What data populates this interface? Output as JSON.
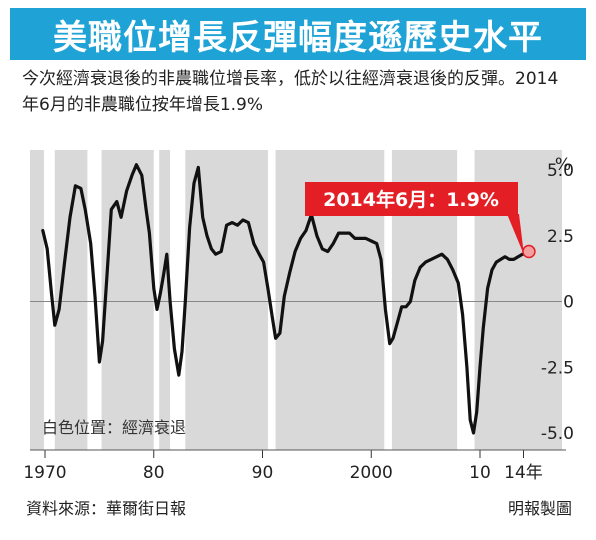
{
  "title": "美職位增長反彈幅度遜歷史水平",
  "subtitle": "今次經濟衰退後的非農職位增長率，低於以往經濟衰退後的反彈。2014年6月的非農職位按年增長1.9%",
  "note": "白色位置：經濟衰退",
  "source": "資料來源：華爾街日報",
  "credit": "明報製圖",
  "callout": "2014年6月：1.9%",
  "colors": {
    "title_bg": "#1fa3d6",
    "recession_band": "#d9d9d9",
    "line": "#111111",
    "callout_bg": "#e31e24",
    "zero_line": "#888888"
  },
  "chart_data": {
    "type": "line",
    "y_unit": "%",
    "ylim": [
      -5.5,
      5.5
    ],
    "y_ticks": [
      5.0,
      2.5,
      0,
      -2.5,
      -5.0
    ],
    "y_tick_labels": [
      "5.0",
      "2.5",
      "0",
      "-2.5",
      "-5.0"
    ],
    "x_ticks": [
      1970,
      1980,
      1990,
      2000,
      2010,
      2014
    ],
    "x_tick_labels": [
      "1970",
      "80",
      "90",
      "2000",
      "10",
      "14年"
    ],
    "xlim": [
      1969.5,
      2015.0
    ],
    "recession_bands_unshaded": [
      [
        1969.9,
        1970.9
      ],
      [
        1973.9,
        1975.2
      ],
      [
        1980.0,
        1980.5
      ],
      [
        1981.5,
        1982.9
      ],
      [
        1990.5,
        1991.2
      ],
      [
        2001.2,
        2001.9
      ],
      [
        2007.9,
        2009.5
      ]
    ],
    "series": [
      {
        "x": [
          1969.8,
          1970.2,
          1970.6,
          1970.9,
          1971.3,
          1971.8,
          1972.3,
          1972.8,
          1973.3,
          1973.7,
          1974.2,
          1974.6,
          1975.0,
          1975.3,
          1975.7,
          1976.1,
          1976.6,
          1977.0,
          1977.5,
          1978.0,
          1978.4,
          1978.9,
          1979.3,
          1979.6,
          1980.0,
          1980.3,
          1980.6,
          1980.9,
          1981.2,
          1981.5,
          1981.9,
          1982.3,
          1982.6,
          1982.9,
          1983.3,
          1983.7,
          1984.1,
          1984.5,
          1984.9,
          1985.3,
          1985.7,
          1986.2,
          1986.7,
          1987.2,
          1987.7,
          1988.2,
          1988.7,
          1989.2,
          1989.7,
          1990.1,
          1990.5,
          1990.9,
          1991.2,
          1991.6,
          1992.0,
          1992.5,
          1993.0,
          1993.5,
          1994.0,
          1994.5,
          1995.0,
          1995.5,
          1996.0,
          1996.5,
          1997.0,
          1997.5,
          1998.0,
          1998.5,
          1999.0,
          1999.5,
          2000.0,
          2000.5,
          2000.9,
          2001.3,
          2001.7,
          2002.0,
          2002.4,
          2002.8,
          2003.2,
          2003.6,
          2004.0,
          2004.5,
          2005.0,
          2005.5,
          2006.0,
          2006.5,
          2007.0,
          2007.5,
          2008.0,
          2008.4,
          2008.8,
          2009.1,
          2009.4,
          2009.7,
          2010.0,
          2010.3,
          2010.7,
          2011.1,
          2011.5,
          2011.9,
          2012.3,
          2012.7,
          2013.1,
          2013.5,
          2013.9,
          2014.3,
          2014.5
        ],
        "y": [
          2.7,
          2.0,
          0.3,
          -0.9,
          -0.3,
          1.5,
          3.2,
          4.4,
          4.3,
          3.5,
          2.2,
          0.2,
          -2.3,
          -1.5,
          1.0,
          3.5,
          3.8,
          3.2,
          4.2,
          4.8,
          5.2,
          4.8,
          3.5,
          2.6,
          0.5,
          -0.3,
          0.3,
          1.0,
          1.8,
          0.0,
          -1.8,
          -2.8,
          -1.9,
          0.0,
          2.8,
          4.5,
          5.1,
          3.2,
          2.5,
          2.0,
          1.8,
          1.9,
          2.9,
          3.0,
          2.9,
          3.1,
          3.0,
          2.2,
          1.8,
          1.5,
          0.5,
          -0.6,
          -1.4,
          -1.2,
          0.2,
          1.1,
          1.9,
          2.4,
          2.7,
          3.3,
          2.5,
          2.0,
          1.9,
          2.2,
          2.6,
          2.6,
          2.6,
          2.4,
          2.4,
          2.4,
          2.3,
          2.2,
          1.6,
          -0.3,
          -1.6,
          -1.4,
          -0.8,
          -0.2,
          -0.2,
          0.0,
          0.8,
          1.3,
          1.5,
          1.6,
          1.7,
          1.8,
          1.6,
          1.2,
          0.7,
          -0.5,
          -2.5,
          -4.5,
          -5.0,
          -4.2,
          -2.5,
          -1.0,
          0.5,
          1.2,
          1.5,
          1.6,
          1.7,
          1.6,
          1.6,
          1.7,
          1.8,
          1.8,
          1.9
        ]
      }
    ]
  }
}
